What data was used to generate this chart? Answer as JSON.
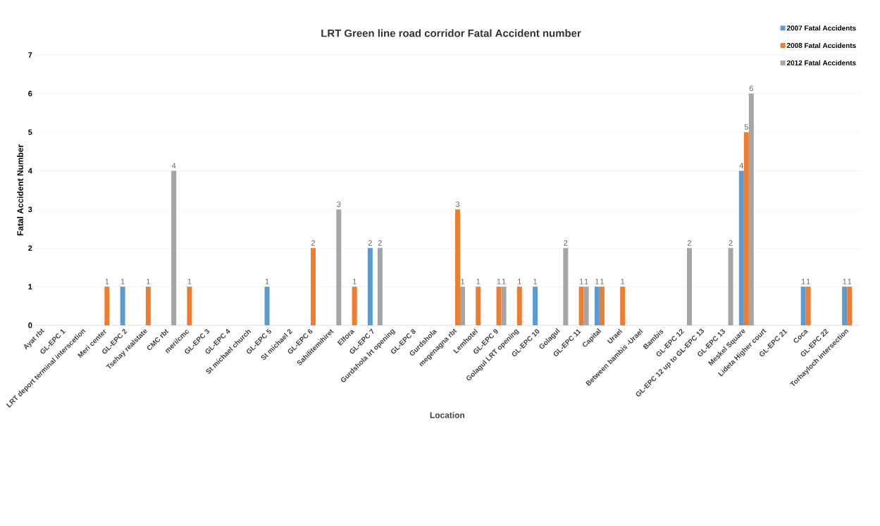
{
  "chart_data": {
    "type": "bar",
    "title": "LRT Green line road corridor Fatal Accident number",
    "xlabel": "Location",
    "ylabel": "Fatal Accident Number",
    "categories": [
      "Ayat rbt",
      "GL-EPC 1",
      "LRT deport terminal interscetion",
      "Meri center",
      "GL-EPC 2",
      "Tsehay realstate",
      "CMC rbt",
      "meri/cmc",
      "GL-EPC 3",
      "GL-EPC 4",
      "St michael church",
      "GL-EPC 5",
      "St michael 2",
      "GL-EPC 6",
      "Sahilitemihiret",
      "Elfora",
      "GL-EPC 7",
      "Gurdshola lrt opening",
      "GL-EPC 8",
      "Gurdshola",
      "megenagna rbt",
      "Lemhotel",
      "GL-EPC 9",
      "Golagul LRT opening",
      "GL-EPC 10",
      "Golagul",
      "GL-EPC 11",
      "Capital",
      "Urael",
      "Between bambis -Urael",
      "Bambis",
      "GL-EPC 12",
      "GL-EPC 12 up to GL-EPC 13",
      "GL-EPC 13",
      "Meskel Square",
      "Lideta Higher court",
      "GL-EPC 21",
      "Coca",
      "GL-EPC 22",
      "Torhayloch intersection"
    ],
    "series": [
      {
        "name": "2007 Fatal Accidents",
        "color": "#5b9bd5",
        "values": [
          null,
          null,
          null,
          null,
          1,
          null,
          null,
          null,
          null,
          null,
          null,
          1,
          null,
          null,
          null,
          null,
          2,
          null,
          null,
          null,
          null,
          null,
          null,
          null,
          1,
          null,
          null,
          1,
          null,
          null,
          null,
          null,
          null,
          null,
          4,
          null,
          null,
          1,
          null,
          1
        ]
      },
      {
        "name": "2008 Fatal Accidents",
        "color": "#ed7d31",
        "values": [
          null,
          null,
          null,
          1,
          null,
          1,
          null,
          1,
          null,
          null,
          null,
          null,
          null,
          2,
          null,
          1,
          null,
          null,
          null,
          null,
          3,
          1,
          1,
          1,
          null,
          null,
          1,
          1,
          1,
          null,
          null,
          null,
          null,
          null,
          5,
          null,
          null,
          1,
          null,
          1
        ]
      },
      {
        "name": "2012 Fatal Accidents",
        "color": "#a5a5a5",
        "values": [
          null,
          null,
          null,
          null,
          null,
          null,
          4,
          null,
          null,
          null,
          null,
          null,
          null,
          null,
          3,
          null,
          2,
          null,
          null,
          null,
          1,
          null,
          1,
          null,
          null,
          2,
          1,
          null,
          null,
          null,
          null,
          2,
          null,
          2,
          6,
          null,
          null,
          null,
          null,
          null
        ]
      }
    ],
    "ylim": [
      0,
      7
    ],
    "yticks": [
      0,
      1,
      2,
      3,
      4,
      5,
      6,
      7
    ],
    "grid": "y",
    "legend": "top right",
    "data_labels": true
  }
}
